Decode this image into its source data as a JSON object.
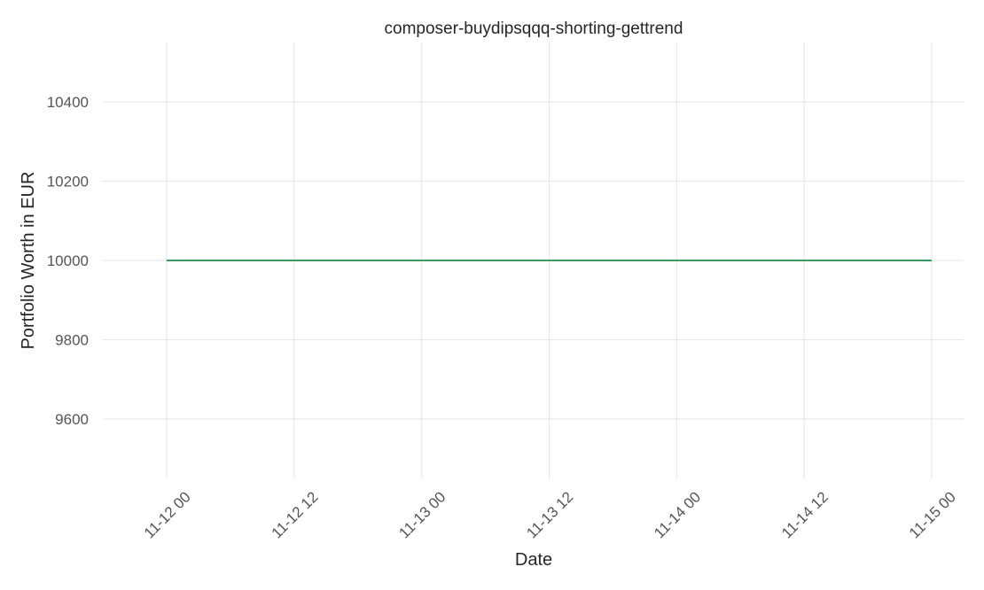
{
  "chart_data": {
    "type": "line",
    "title": "composer-buydipsqqq-shorting-gettrend",
    "xlabel": "Date",
    "ylabel": "Portfolio Worth in EUR",
    "x_ticks": [
      "11-12 00",
      "11-12 12",
      "11-13 00",
      "11-13 12",
      "11-14 00",
      "11-14 12",
      "11-15 00"
    ],
    "y_ticks": [
      9600,
      9800,
      10000,
      10200,
      10400
    ],
    "ylim": [
      9450,
      10550
    ],
    "xlim": [
      "11-11 18",
      "11-15 03"
    ],
    "grid": true,
    "series": [
      {
        "color": "#3a9a5b",
        "x": [
          "11-12 00",
          "11-12 12",
          "11-13 00",
          "11-13 12",
          "11-14 00",
          "11-14 12",
          "11-15 00"
        ],
        "values": [
          10000,
          10000,
          10000,
          10000,
          10000,
          10000,
          10000
        ]
      }
    ]
  }
}
